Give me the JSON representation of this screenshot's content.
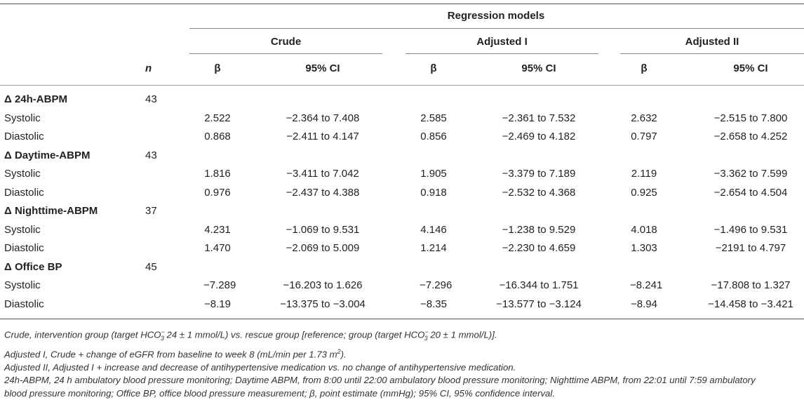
{
  "header": {
    "group_title": "Regression models",
    "n_label": "n",
    "models": [
      "Crude",
      "Adjusted I",
      "Adjusted II"
    ],
    "beta_label": "β",
    "ci_label": "95% CI"
  },
  "sections": [
    {
      "title": "Δ 24h-ABPM",
      "n": "43",
      "rows": [
        {
          "label": "Systolic",
          "values": [
            "2.522",
            "−2.364 to 7.408",
            "2.585",
            "−2.361 to 7.532",
            "2.632",
            "−2.515 to 7.800"
          ]
        },
        {
          "label": "Diastolic",
          "values": [
            "0.868",
            "−2.411 to 4.147",
            "0.856",
            "−2.469 to 4.182",
            "0.797",
            "−2.658 to 4.252"
          ]
        }
      ]
    },
    {
      "title": "Δ Daytime-ABPM",
      "n": "43",
      "rows": [
        {
          "label": "Systolic",
          "values": [
            "1.816",
            "−3.411 to 7.042",
            "1.905",
            "−3.379 to 7.189",
            "2.119",
            "−3.362 to 7.599"
          ]
        },
        {
          "label": "Diastolic",
          "values": [
            "0.976",
            "−2.437 to 4.388",
            "0.918",
            "−2.532 to 4.368",
            "0.925",
            "−2.654 to 4.504"
          ]
        }
      ]
    },
    {
      "title": "Δ Nighttime-ABPM",
      "n": "37",
      "rows": [
        {
          "label": "Systolic",
          "values": [
            "4.231",
            "−1.069 to 9.531",
            "4.146",
            "−1.238 to 9.529",
            "4.018",
            "−1.496 to 9.531"
          ]
        },
        {
          "label": "Diastolic",
          "values": [
            "1.470",
            "−2.069 to 5.009",
            "1.214",
            "−2.230 to 4.659",
            "1.303",
            "−2191 to 4.797"
          ]
        }
      ]
    },
    {
      "title": "Δ Office BP",
      "n": "45",
      "rows": [
        {
          "label": "Systolic",
          "values": [
            "−7.289",
            "−16.203 to 1.626",
            "−7.296",
            "−16.344 to 1.751",
            "−8.241",
            "−17.808 to 1.327"
          ]
        },
        {
          "label": "Diastolic",
          "values": [
            "−8.19",
            "−13.375 to −3.004",
            "−8.35",
            "−13.577 to −3.124",
            "−8.94",
            "−14.458 to −3.421"
          ]
        }
      ]
    }
  ],
  "footnotes": {
    "crude_a": "Crude, intervention group (target HCO",
    "chem_sub": "3",
    "chem_sup": "−",
    "crude_b": " 24 ± 1 mmol/L) vs. rescue group [reference; group (target HCO",
    "crude_c": " 20 ± 1 mmol/L)].",
    "adj1_a": "Adjusted I, Crude + change of eGFR from baseline to week 8 (mL/min per 1.73 m",
    "adj1_sup": "2",
    "adj1_b": ").",
    "adj2": "Adjusted II, Adjusted I + increase and decrease of antihypertensive medication vs. no change of antihypertensive medication.",
    "abbr1": "24h-ABPM, 24 h ambulatory blood pressure monitoring; Daytime ABPM, from 8:00 until 22:00 ambulatory blood pressure monitoring; Nighttime ABPM, from 22:01 until 7:59 ambulatory",
    "abbr2": "blood pressure monitoring; Office BP, office blood pressure measurement; β, point estimate (mmHg); 95% CI, 95% confidence interval."
  }
}
